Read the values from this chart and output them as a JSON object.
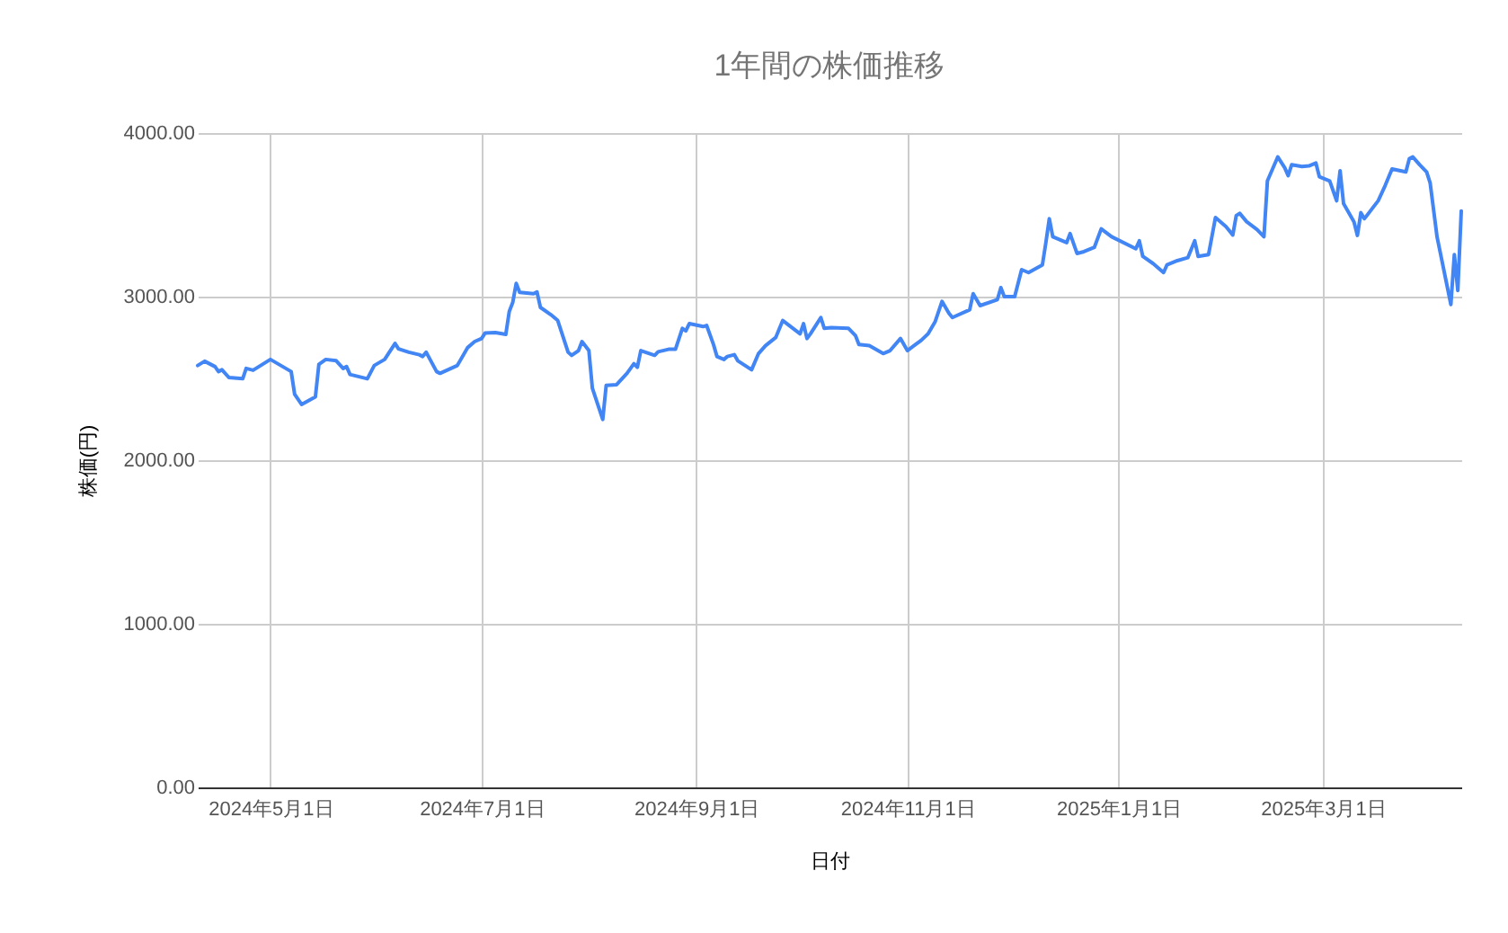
{
  "chart_data": {
    "type": "line",
    "title": "1年間の株価推移",
    "xlabel": "日付",
    "ylabel": "株価(円)",
    "xlim": [
      "2024-04-10",
      "2025-04-10"
    ],
    "xticks": [
      {
        "value": "2024-05-01",
        "label": "2024年5月1日"
      },
      {
        "value": "2024-07-01",
        "label": "2024年7月1日"
      },
      {
        "value": "2024-09-01",
        "label": "2024年9月1日"
      },
      {
        "value": "2024-11-01",
        "label": "2024年11月1日"
      },
      {
        "value": "2025-01-01",
        "label": "2025年1月1日"
      },
      {
        "value": "2025-03-01",
        "label": "2025年3月1日"
      }
    ],
    "ylim": [
      0,
      4000
    ],
    "yticks": [
      {
        "value": 0,
        "label": "0.00"
      },
      {
        "value": 1000,
        "label": "1000.00"
      },
      {
        "value": 2000,
        "label": "2000.00"
      },
      {
        "value": 3000,
        "label": "3000.00"
      },
      {
        "value": 4000,
        "label": "4000.00"
      }
    ],
    "grid": true,
    "marker": "none",
    "line_style": "solid",
    "series": [
      {
        "color": "#4285f4",
        "x": [
          "2024-04-10",
          "2024-04-12",
          "2024-04-15",
          "2024-04-16",
          "2024-04-17",
          "2024-04-19",
          "2024-04-23",
          "2024-04-24",
          "2024-04-26",
          "2024-05-01",
          "2024-05-07",
          "2024-05-08",
          "2024-05-10",
          "2024-05-14",
          "2024-05-15",
          "2024-05-17",
          "2024-05-20",
          "2024-05-22",
          "2024-05-23",
          "2024-05-24",
          "2024-05-29",
          "2024-05-31",
          "2024-06-03",
          "2024-06-06",
          "2024-06-07",
          "2024-06-10",
          "2024-06-13",
          "2024-06-14",
          "2024-06-15",
          "2024-06-18",
          "2024-06-19",
          "2024-06-24",
          "2024-06-27",
          "2024-06-29",
          "2024-07-01",
          "2024-07-02",
          "2024-07-05",
          "2024-07-08",
          "2024-07-09",
          "2024-07-10",
          "2024-07-11",
          "2024-07-12",
          "2024-07-16",
          "2024-07-17",
          "2024-07-18",
          "2024-07-21",
          "2024-07-23",
          "2024-07-26",
          "2024-07-27",
          "2024-07-29",
          "2024-07-30",
          "2024-08-01",
          "2024-08-02",
          "2024-08-05",
          "2024-08-06",
          "2024-08-09",
          "2024-08-12",
          "2024-08-14",
          "2024-08-15",
          "2024-08-16",
          "2024-08-20",
          "2024-08-21",
          "2024-08-24",
          "2024-08-26",
          "2024-08-28",
          "2024-08-29",
          "2024-08-30",
          "2024-09-03",
          "2024-09-04",
          "2024-09-06",
          "2024-09-07",
          "2024-09-09",
          "2024-09-10",
          "2024-09-12",
          "2024-09-13",
          "2024-09-17",
          "2024-09-19",
          "2024-09-21",
          "2024-09-24",
          "2024-09-26",
          "2024-10-01",
          "2024-10-02",
          "2024-10-03",
          "2024-10-04",
          "2024-10-07",
          "2024-10-08",
          "2024-10-10",
          "2024-10-15",
          "2024-10-17",
          "2024-10-18",
          "2024-10-21",
          "2024-10-25",
          "2024-10-27",
          "2024-10-30",
          "2024-11-01",
          "2024-11-05",
          "2024-11-07",
          "2024-11-09",
          "2024-11-11",
          "2024-11-13",
          "2024-11-14",
          "2024-11-19",
          "2024-11-20",
          "2024-11-22",
          "2024-11-27",
          "2024-11-28",
          "2024-11-29",
          "2024-12-02",
          "2024-12-04",
          "2024-12-06",
          "2024-12-10",
          "2024-12-11",
          "2024-12-12",
          "2024-12-13",
          "2024-12-17",
          "2024-12-18",
          "2024-12-20",
          "2024-12-22",
          "2024-12-25",
          "2024-12-27",
          "2024-12-30",
          "2025-01-06",
          "2025-01-07",
          "2025-01-08",
          "2025-01-11",
          "2025-01-14",
          "2025-01-15",
          "2025-01-18",
          "2025-01-21",
          "2025-01-23",
          "2025-01-24",
          "2025-01-27",
          "2025-01-29",
          "2025-02-01",
          "2025-02-03",
          "2025-02-04",
          "2025-02-05",
          "2025-02-07",
          "2025-02-10",
          "2025-02-12",
          "2025-02-13",
          "2025-02-16",
          "2025-02-18",
          "2025-02-19",
          "2025-02-20",
          "2025-02-23",
          "2025-02-25",
          "2025-02-27",
          "2025-02-28",
          "2025-03-03",
          "2025-03-05",
          "2025-03-06",
          "2025-03-07",
          "2025-03-10",
          "2025-03-11",
          "2025-03-12",
          "2025-03-13",
          "2025-03-17",
          "2025-03-19",
          "2025-03-21",
          "2025-03-25",
          "2025-03-26",
          "2025-03-27",
          "2025-03-29",
          "2025-03-31",
          "2025-04-01",
          "2025-04-03",
          "2025-04-07",
          "2025-04-08",
          "2025-04-09",
          "2025-04-10"
        ],
        "values": [
          2579,
          2605,
          2572,
          2542,
          2553,
          2506,
          2498,
          2561,
          2550,
          2616,
          2542,
          2403,
          2341,
          2388,
          2586,
          2616,
          2608,
          2561,
          2572,
          2524,
          2498,
          2579,
          2616,
          2714,
          2681,
          2660,
          2645,
          2634,
          2660,
          2542,
          2531,
          2579,
          2689,
          2725,
          2744,
          2777,
          2780,
          2769,
          2909,
          2964,
          3081,
          3026,
          3018,
          3029,
          2934,
          2890,
          2854,
          2660,
          2641,
          2670,
          2725,
          2670,
          2440,
          2249,
          2458,
          2462,
          2531,
          2590,
          2568,
          2670,
          2641,
          2663,
          2678,
          2678,
          2806,
          2791,
          2835,
          2817,
          2824,
          2707,
          2634,
          2616,
          2634,
          2645,
          2608,
          2553,
          2652,
          2700,
          2751,
          2854,
          2773,
          2835,
          2744,
          2773,
          2872,
          2806,
          2810,
          2806,
          2762,
          2707,
          2700,
          2652,
          2670,
          2744,
          2670,
          2733,
          2773,
          2846,
          2971,
          2898,
          2872,
          2920,
          3018,
          2945,
          2982,
          3055,
          3000,
          3000,
          3165,
          3147,
          3194,
          3330,
          3476,
          3366,
          3330,
          3385,
          3264,
          3275,
          3301,
          3414,
          3366,
          3293,
          3341,
          3246,
          3202,
          3147,
          3194,
          3220,
          3238,
          3341,
          3246,
          3257,
          3484,
          3429,
          3377,
          3495,
          3509,
          3458,
          3410,
          3366,
          3707,
          3854,
          3788,
          3740,
          3806,
          3795,
          3799,
          3817,
          3733,
          3707,
          3586,
          3769,
          3568,
          3458,
          3374,
          3513,
          3476,
          3586,
          3678,
          3780,
          3762,
          3843,
          3854,
          3806,
          3762,
          3696,
          3366,
          2952,
          3257,
          3037,
          3524
        ]
      }
    ]
  }
}
